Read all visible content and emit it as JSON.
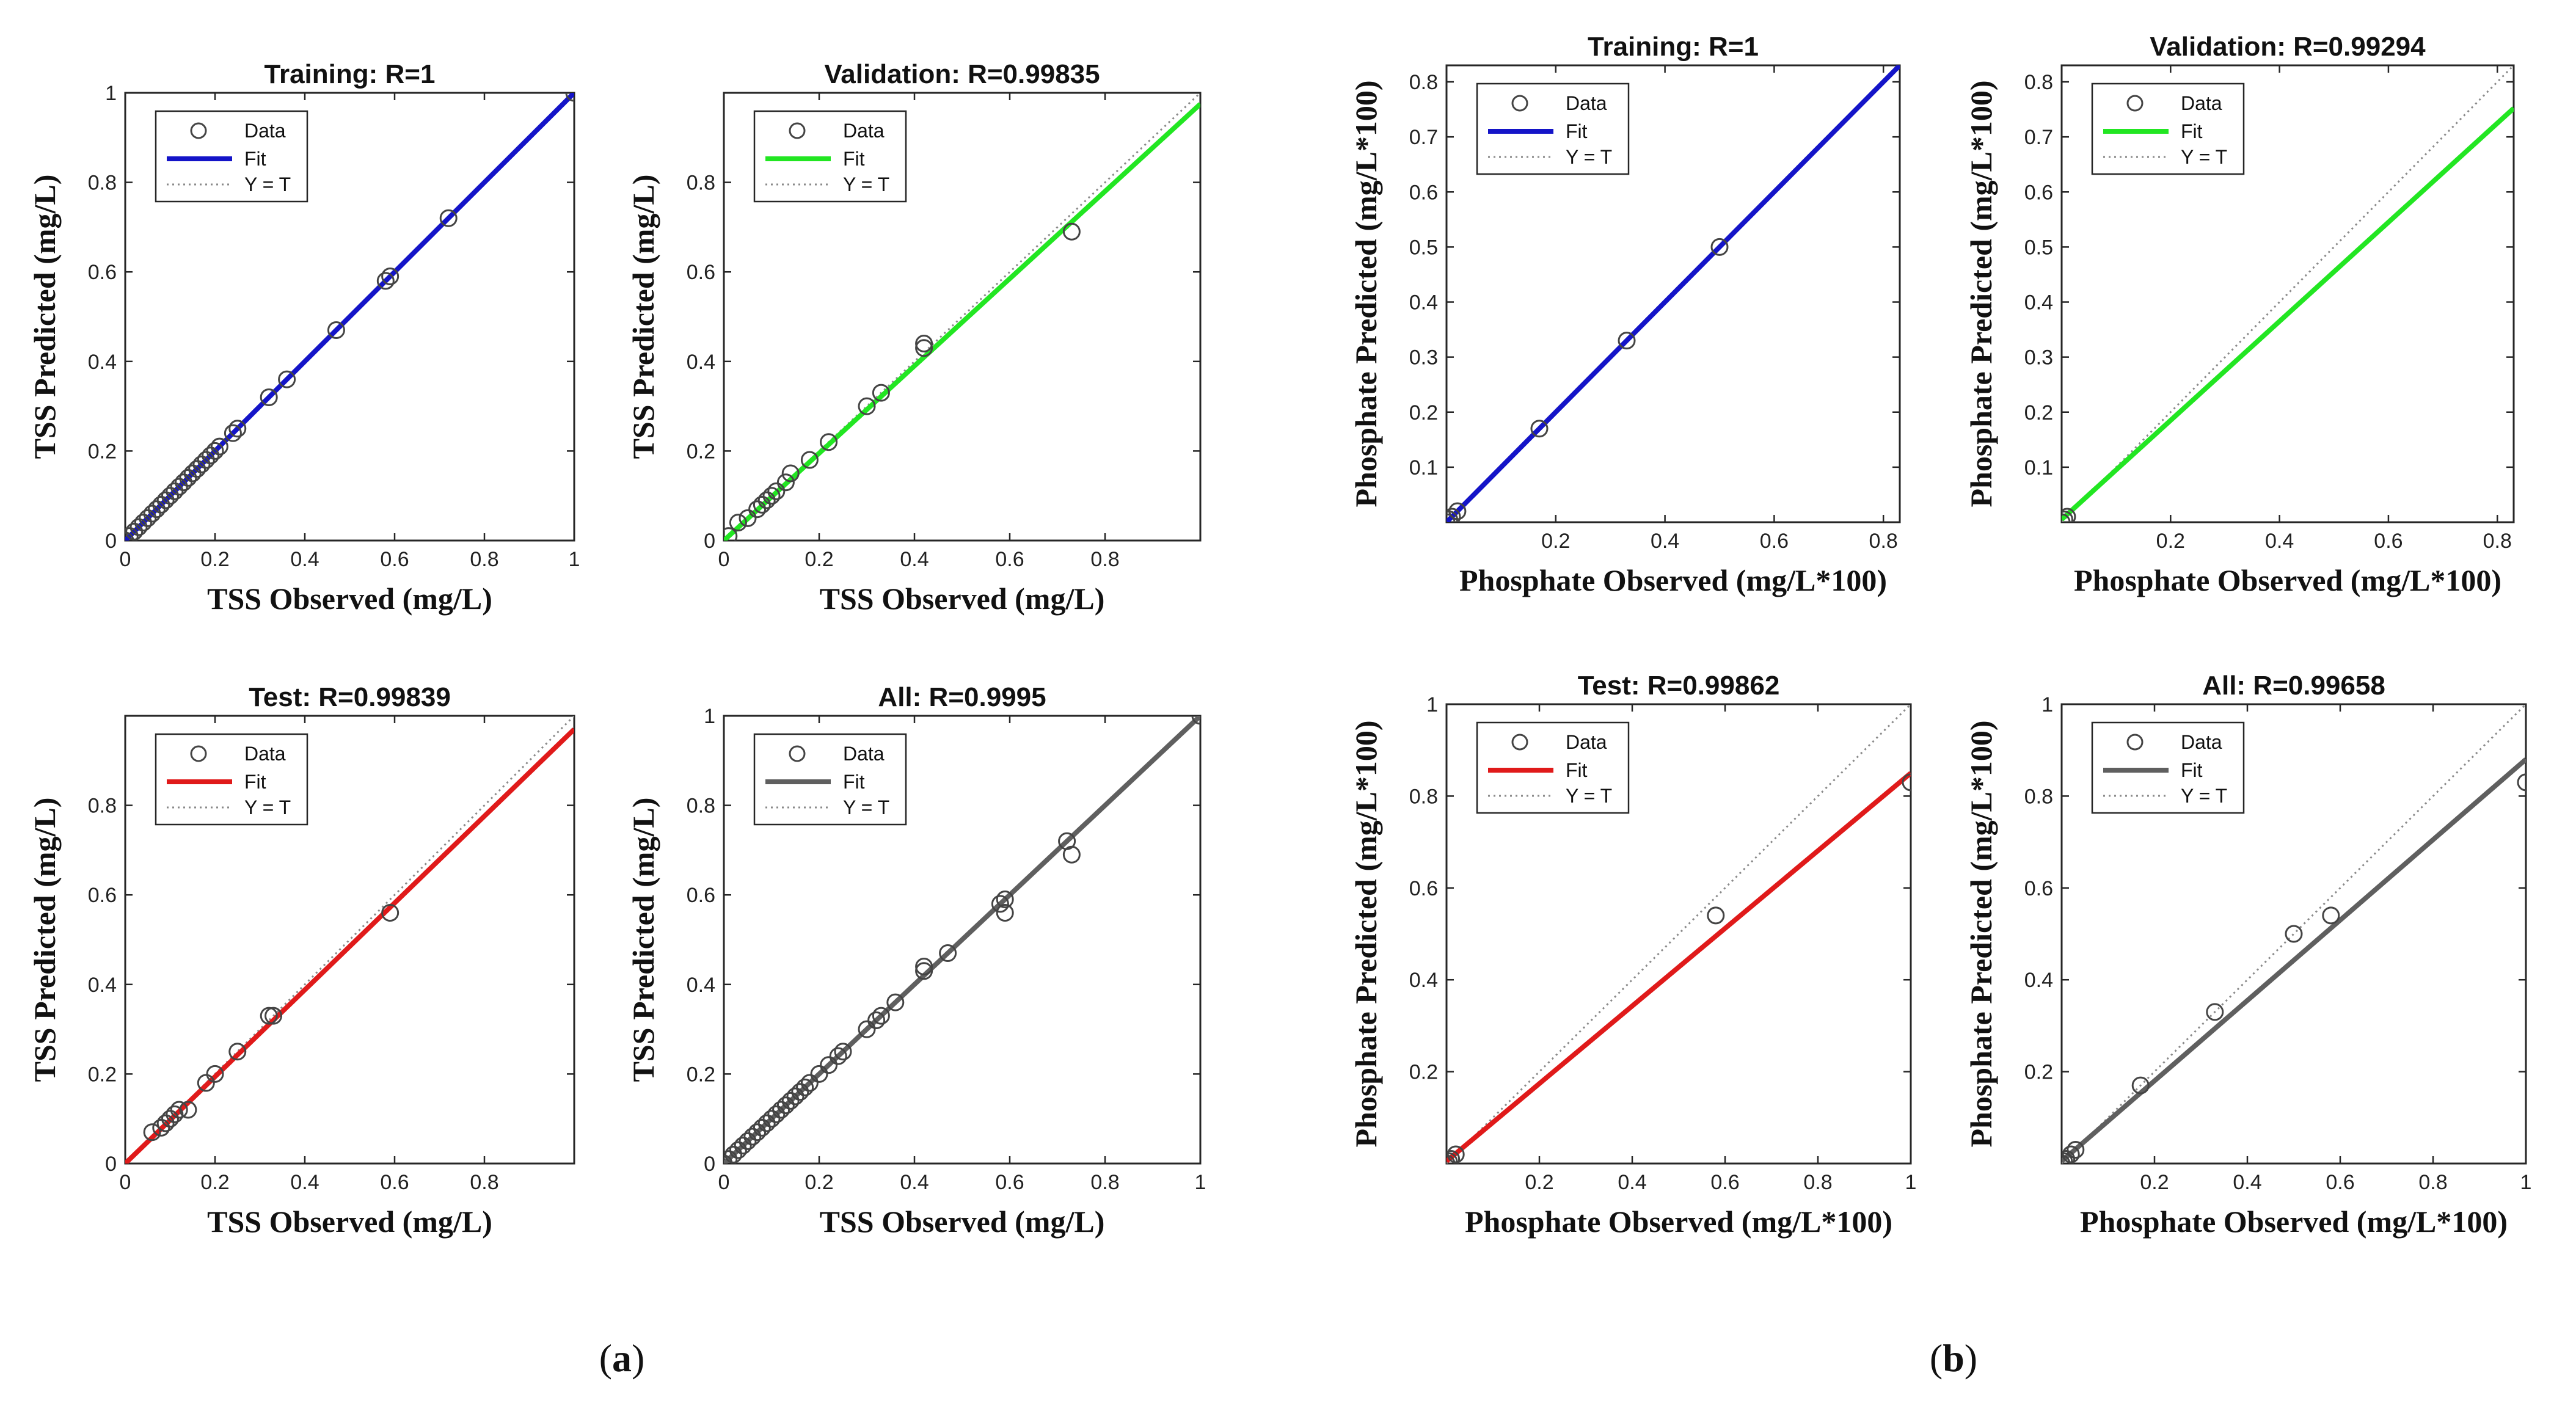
{
  "figure_labels": [
    {
      "open": "(",
      "letter": "a",
      "close": ")"
    },
    {
      "open": "(",
      "letter": "b",
      "close": ")"
    }
  ],
  "legend": {
    "data": "Data",
    "fit": "Fit",
    "yt": "Y = T"
  },
  "colors": {
    "training": "#1414c8",
    "validation": "#22e622",
    "test": "#e01a1a",
    "all": "#5f5f5f",
    "marker": "#444444",
    "identity": "#8a8a8a"
  },
  "chart_data": [
    {
      "type": "scatter",
      "group": "a",
      "title": "Training: R=1",
      "xlabel": "TSS Observed (mg/L)",
      "ylabel": "TSS Predicted (mg/L)",
      "xlim": [
        0,
        1
      ],
      "ylim": [
        0,
        1
      ],
      "xticks": [
        0,
        0.2,
        0.4,
        0.6,
        0.8,
        1
      ],
      "yticks": [
        0,
        0.2,
        0.4,
        0.6,
        0.8,
        1
      ],
      "fit_color": "training",
      "fit": {
        "slope": 1.0,
        "intercept": 0.0
      },
      "points": [
        [
          0,
          0
        ],
        [
          0.01,
          0.01
        ],
        [
          0.02,
          0.02
        ],
        [
          0.03,
          0.03
        ],
        [
          0.04,
          0.04
        ],
        [
          0.05,
          0.05
        ],
        [
          0.06,
          0.06
        ],
        [
          0.07,
          0.07
        ],
        [
          0.08,
          0.08
        ],
        [
          0.09,
          0.09
        ],
        [
          0.1,
          0.1
        ],
        [
          0.11,
          0.11
        ],
        [
          0.12,
          0.12
        ],
        [
          0.13,
          0.13
        ],
        [
          0.14,
          0.14
        ],
        [
          0.15,
          0.15
        ],
        [
          0.16,
          0.16
        ],
        [
          0.17,
          0.17
        ],
        [
          0.18,
          0.18
        ],
        [
          0.19,
          0.19
        ],
        [
          0.2,
          0.2
        ],
        [
          0.21,
          0.21
        ],
        [
          0.24,
          0.24
        ],
        [
          0.25,
          0.25
        ],
        [
          0.32,
          0.32
        ],
        [
          0.36,
          0.36
        ],
        [
          0.47,
          0.47
        ],
        [
          0.58,
          0.58
        ],
        [
          0.59,
          0.59
        ],
        [
          0.72,
          0.72
        ],
        [
          1,
          1
        ]
      ]
    },
    {
      "type": "scatter",
      "group": "a",
      "title": "Validation: R=0.99835",
      "xlabel": "TSS Observed (mg/L)",
      "ylabel": "TSS Predicted (mg/L)",
      "xlim": [
        0,
        1
      ],
      "ylim": [
        0,
        1
      ],
      "xticks": [
        0,
        0.2,
        0.4,
        0.6,
        0.8
      ],
      "yticks": [
        0,
        0.2,
        0.4,
        0.6,
        0.8
      ],
      "fit_color": "validation",
      "fit": {
        "slope": 0.975,
        "intercept": 0.0
      },
      "points": [
        [
          0.01,
          0.01
        ],
        [
          0.03,
          0.04
        ],
        [
          0.05,
          0.05
        ],
        [
          0.07,
          0.07
        ],
        [
          0.08,
          0.08
        ],
        [
          0.09,
          0.09
        ],
        [
          0.1,
          0.1
        ],
        [
          0.11,
          0.11
        ],
        [
          0.13,
          0.13
        ],
        [
          0.14,
          0.15
        ],
        [
          0.18,
          0.18
        ],
        [
          0.22,
          0.22
        ],
        [
          0.3,
          0.3
        ],
        [
          0.33,
          0.33
        ],
        [
          0.42,
          0.43
        ],
        [
          0.42,
          0.44
        ],
        [
          0.73,
          0.69
        ]
      ]
    },
    {
      "type": "scatter",
      "group": "a",
      "title": "Test: R=0.99839",
      "xlabel": "TSS Observed (mg/L)",
      "ylabel": "TSS Predicted (mg/L)",
      "xlim": [
        0,
        1
      ],
      "ylim": [
        0,
        1
      ],
      "xticks": [
        0,
        0.2,
        0.4,
        0.6,
        0.8
      ],
      "yticks": [
        0,
        0.2,
        0.4,
        0.6,
        0.8
      ],
      "fit_color": "test",
      "fit": {
        "slope": 0.97,
        "intercept": 0.0
      },
      "points": [
        [
          0.06,
          0.07
        ],
        [
          0.08,
          0.08
        ],
        [
          0.09,
          0.09
        ],
        [
          0.1,
          0.1
        ],
        [
          0.11,
          0.11
        ],
        [
          0.12,
          0.12
        ],
        [
          0.14,
          0.12
        ],
        [
          0.18,
          0.18
        ],
        [
          0.2,
          0.2
        ],
        [
          0.25,
          0.25
        ],
        [
          0.32,
          0.33
        ],
        [
          0.33,
          0.33
        ],
        [
          0.59,
          0.56
        ]
      ]
    },
    {
      "type": "scatter",
      "group": "a",
      "title": "All: R=0.9995",
      "xlabel": "TSS Observed (mg/L)",
      "ylabel": "TSS Predicted (mg/L)",
      "xlim": [
        0,
        1
      ],
      "ylim": [
        0,
        1
      ],
      "xticks": [
        0,
        0.2,
        0.4,
        0.6,
        0.8,
        1
      ],
      "yticks": [
        0,
        0.2,
        0.4,
        0.6,
        0.8,
        1
      ],
      "fit_color": "all",
      "fit": {
        "slope": 1.0,
        "intercept": 0.0
      },
      "points": [
        [
          0,
          0
        ],
        [
          0.01,
          0.01
        ],
        [
          0.02,
          0.02
        ],
        [
          0.03,
          0.03
        ],
        [
          0.04,
          0.04
        ],
        [
          0.05,
          0.05
        ],
        [
          0.06,
          0.06
        ],
        [
          0.07,
          0.07
        ],
        [
          0.08,
          0.08
        ],
        [
          0.09,
          0.09
        ],
        [
          0.1,
          0.1
        ],
        [
          0.11,
          0.11
        ],
        [
          0.12,
          0.12
        ],
        [
          0.13,
          0.13
        ],
        [
          0.14,
          0.14
        ],
        [
          0.15,
          0.15
        ],
        [
          0.16,
          0.16
        ],
        [
          0.17,
          0.17
        ],
        [
          0.18,
          0.18
        ],
        [
          0.2,
          0.2
        ],
        [
          0.22,
          0.22
        ],
        [
          0.24,
          0.24
        ],
        [
          0.25,
          0.25
        ],
        [
          0.3,
          0.3
        ],
        [
          0.32,
          0.32
        ],
        [
          0.33,
          0.33
        ],
        [
          0.36,
          0.36
        ],
        [
          0.42,
          0.43
        ],
        [
          0.42,
          0.44
        ],
        [
          0.47,
          0.47
        ],
        [
          0.58,
          0.58
        ],
        [
          0.59,
          0.59
        ],
        [
          0.59,
          0.56
        ],
        [
          0.72,
          0.72
        ],
        [
          0.73,
          0.69
        ],
        [
          1,
          1
        ]
      ]
    },
    {
      "type": "scatter",
      "group": "b",
      "title": "Training: R=1",
      "xlabel": "Phosphate Observed (mg/L*100)",
      "ylabel": "Phosphate Predicted (mg/L*100)",
      "xlim": [
        0,
        0.83
      ],
      "ylim": [
        0,
        0.83
      ],
      "xticks": [
        0.2,
        0.4,
        0.6,
        0.8
      ],
      "yticks": [
        0.1,
        0.2,
        0.3,
        0.4,
        0.5,
        0.6,
        0.7,
        0.8
      ],
      "fit_color": "training",
      "fit": {
        "slope": 1.0,
        "intercept": 0.0
      },
      "points": [
        [
          0,
          0
        ],
        [
          0.005,
          0.005
        ],
        [
          0.01,
          0.01
        ],
        [
          0.02,
          0.02
        ],
        [
          0.17,
          0.17
        ],
        [
          0.33,
          0.33
        ],
        [
          0.5,
          0.5
        ]
      ]
    },
    {
      "type": "scatter",
      "group": "b",
      "title": "Validation: R=0.99294",
      "xlabel": "Phosphate Observed (mg/L*100)",
      "ylabel": "Phosphate Predicted (mg/L*100)",
      "xlim": [
        0,
        0.83
      ],
      "ylim": [
        0,
        0.83
      ],
      "xticks": [
        0.2,
        0.4,
        0.6,
        0.8
      ],
      "yticks": [
        0.1,
        0.2,
        0.3,
        0.4,
        0.5,
        0.6,
        0.7,
        0.8
      ],
      "fit_color": "validation",
      "fit": {
        "slope": 0.9,
        "intercept": 0.005
      },
      "points": [
        [
          0.0,
          0.0
        ],
        [
          0.005,
          0.005
        ],
        [
          0.01,
          0.01
        ]
      ]
    },
    {
      "type": "scatter",
      "group": "b",
      "title": "Test: R=0.99862",
      "xlabel": "Phosphate Observed (mg/L*100)",
      "ylabel": "Phosphate Predicted (mg/L*100)",
      "xlim": [
        0,
        1
      ],
      "ylim": [
        0,
        1
      ],
      "xticks": [
        0.2,
        0.4,
        0.6,
        0.8,
        1
      ],
      "yticks": [
        0.2,
        0.4,
        0.6,
        0.8,
        1
      ],
      "fit_color": "test",
      "fit": {
        "slope": 0.845,
        "intercept": 0.005
      },
      "points": [
        [
          0,
          0
        ],
        [
          0.005,
          0.005
        ],
        [
          0.01,
          0.01
        ],
        [
          0.02,
          0.02
        ],
        [
          0.58,
          0.54
        ],
        [
          1,
          0.83
        ]
      ]
    },
    {
      "type": "scatter",
      "group": "b",
      "title": "All: R=0.99658",
      "xlabel": "Phosphate Observed (mg/L*100)",
      "ylabel": "Phosphate Predicted (mg/L*100)",
      "xlim": [
        0,
        1
      ],
      "ylim": [
        0,
        1
      ],
      "xticks": [
        0.2,
        0.4,
        0.6,
        0.8,
        1
      ],
      "yticks": [
        0.2,
        0.4,
        0.6,
        0.8,
        1
      ],
      "fit_color": "all",
      "fit": {
        "slope": 0.875,
        "intercept": 0.005
      },
      "points": [
        [
          0,
          0
        ],
        [
          0.005,
          0.005
        ],
        [
          0.01,
          0.01
        ],
        [
          0.02,
          0.02
        ],
        [
          0.03,
          0.03
        ],
        [
          0.17,
          0.17
        ],
        [
          0.33,
          0.33
        ],
        [
          0.5,
          0.5
        ],
        [
          0.58,
          0.54
        ],
        [
          1,
          0.83
        ]
      ]
    }
  ]
}
